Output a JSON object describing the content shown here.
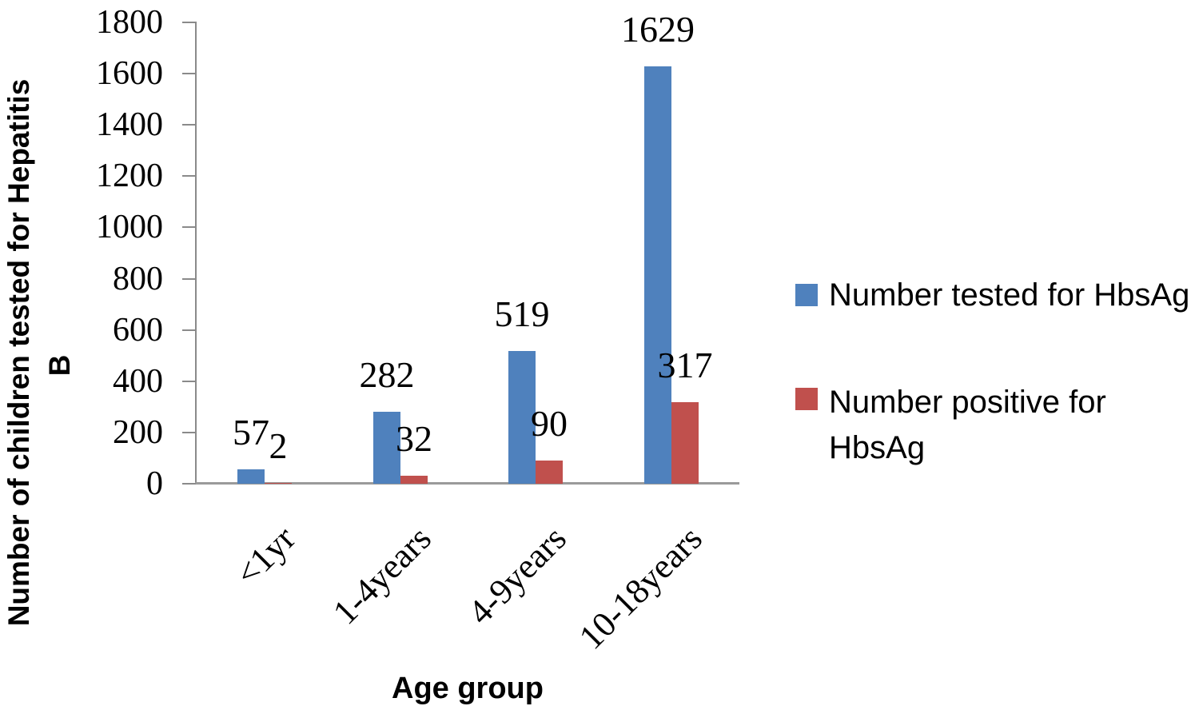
{
  "chart_data": {
    "type": "bar",
    "title": "",
    "categories": [
      "<1yr",
      "1-4years",
      "4-9years",
      "10-18years"
    ],
    "series": [
      {
        "name": "Number tested for HbsAg",
        "color": "#4F81BD",
        "values": [
          57,
          282,
          519,
          1629
        ]
      },
      {
        "name": "Number positive for HbsAg",
        "color": "#C0504D",
        "values": [
          2,
          32,
          90,
          317
        ]
      }
    ],
    "data_labels": [
      {
        "series": "Number tested for HbsAg",
        "labels": [
          "57",
          "282",
          "519",
          "1629"
        ]
      },
      {
        "series": "Number positive for HbsAg",
        "labels": [
          "2",
          "32",
          "90",
          "317"
        ]
      }
    ],
    "xlabel": "Age group",
    "ylabel": "Number of children tested for Hepatitis B",
    "ylabel_line1": "Number of children tested for Hepatitis",
    "ylabel_line2": "B",
    "ylim": [
      0,
      1800
    ],
    "yticks": [
      "0",
      "200",
      "400",
      "600",
      "800",
      "1000",
      "1200",
      "1400",
      "1600",
      "1800"
    ],
    "grid": false,
    "legend_position": "right",
    "axis_color": "#8a8a8a",
    "text_color": "#000000"
  }
}
